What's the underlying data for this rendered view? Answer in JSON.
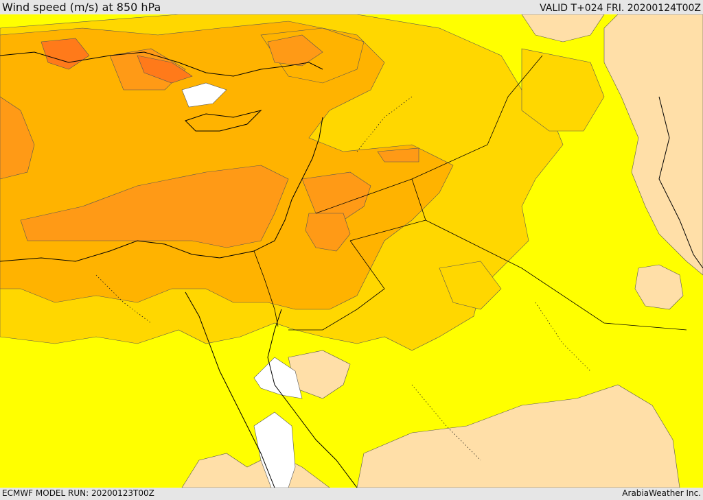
{
  "header": {
    "title": "Wind speed (m/s) at 850 hPa",
    "valid": "VALID T+024 FRI. 20200124T00Z"
  },
  "footer": {
    "model_run": "ECMWF MODEL RUN: 20200123T00Z",
    "credit": "ArabiaWeather Inc."
  },
  "colors": {
    "calm": "#ffffff",
    "light": "#ffdfa8",
    "moderate": "#ffff00",
    "fresh": "#ffd700",
    "strong": "#ffb300",
    "very_strong": "#ff9a16",
    "gale": "#ff7a1a",
    "border": "#000000"
  }
}
